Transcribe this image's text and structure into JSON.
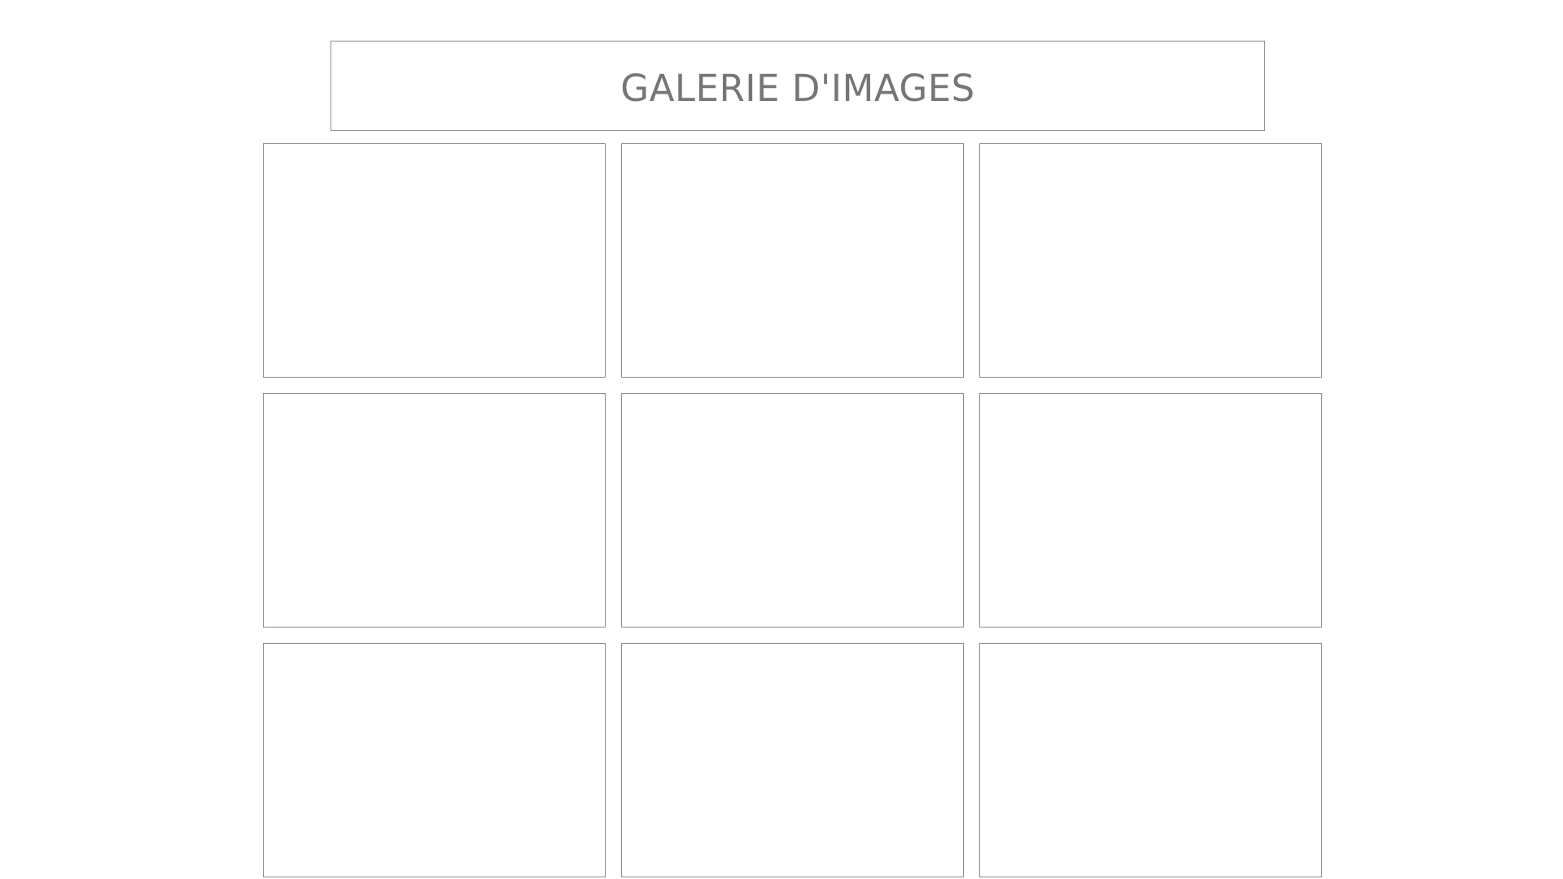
{
  "header": {
    "title": "GALERIE D'IMAGES"
  },
  "gallery": {
    "tiles": [
      {
        "id": 1
      },
      {
        "id": 2
      },
      {
        "id": 3
      },
      {
        "id": 4
      },
      {
        "id": 5
      },
      {
        "id": 6
      },
      {
        "id": 7
      },
      {
        "id": 8
      },
      {
        "id": 9
      }
    ]
  },
  "colors": {
    "border": "#8c8c8c",
    "title_text": "#767676",
    "background": "#ffffff"
  }
}
